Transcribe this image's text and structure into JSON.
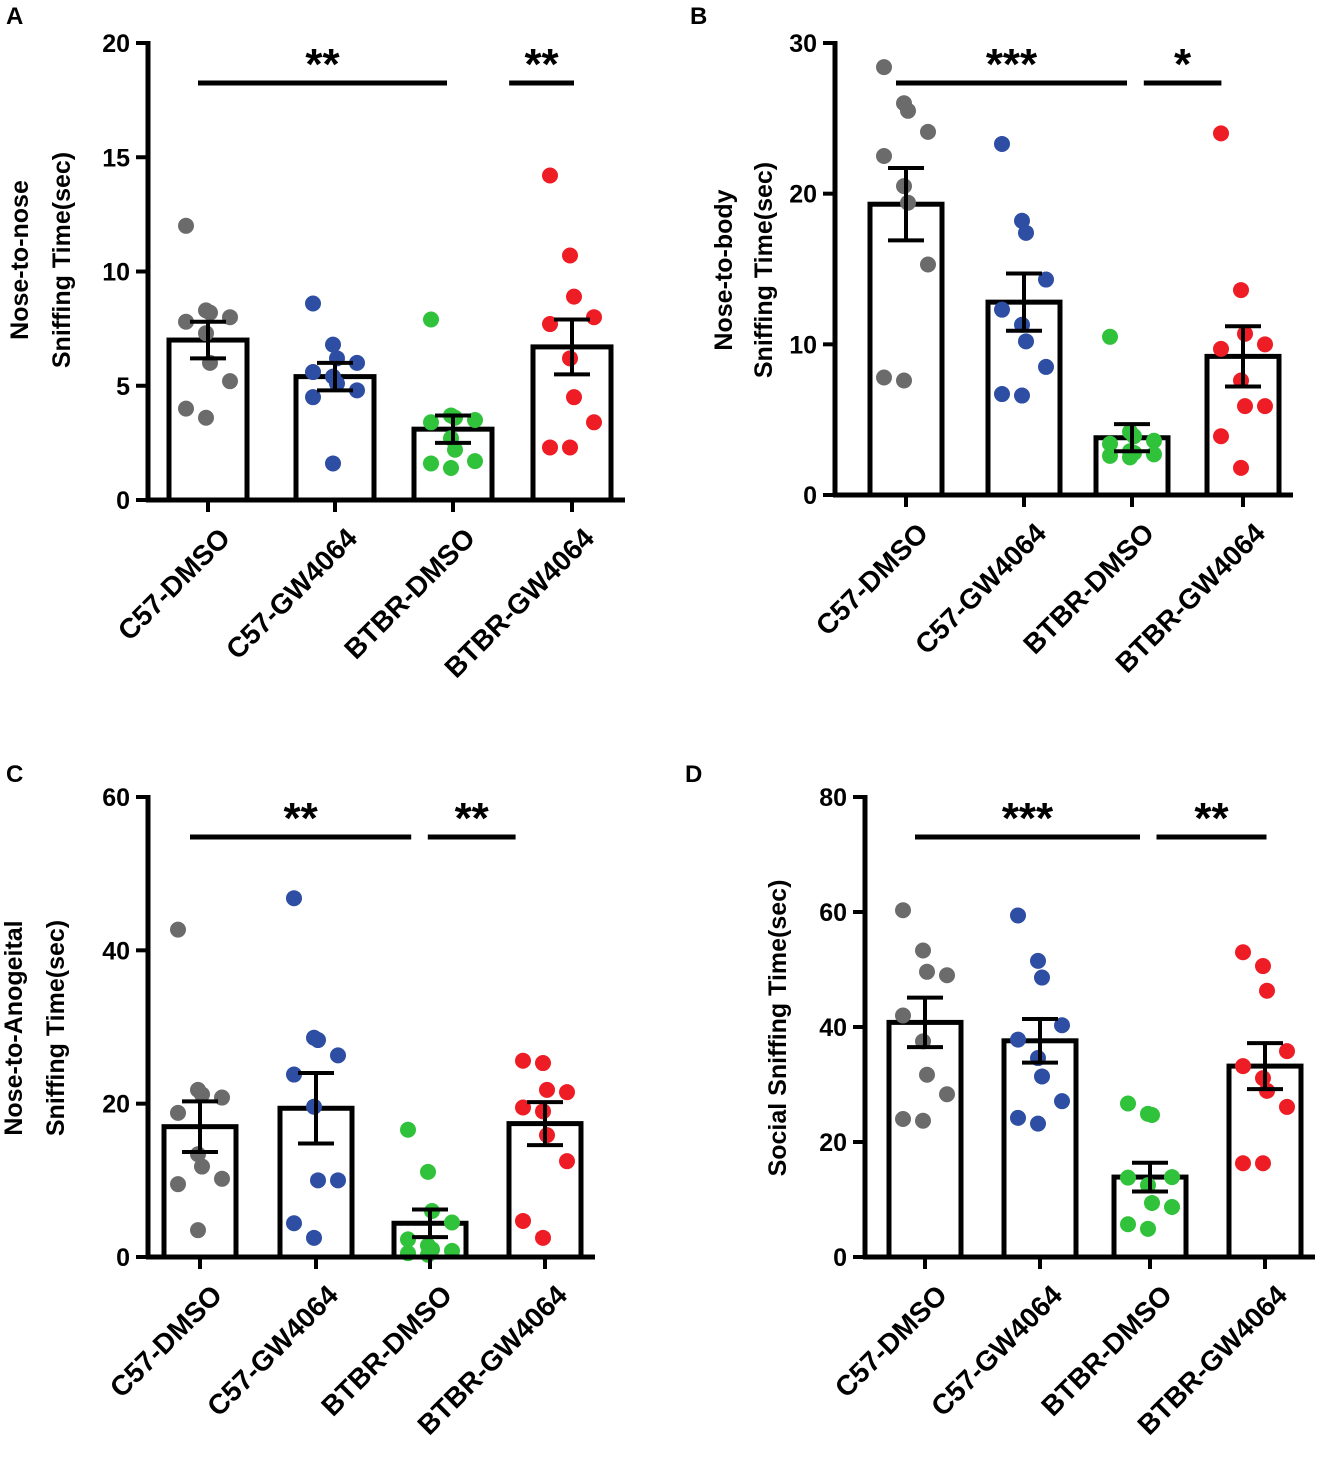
{
  "figure": {
    "colors": {
      "C57-DMSO": "#6b6b6b",
      "C57-GW4064": "#2e4ea3",
      "BTBR-DMSO": "#2fc23a",
      "BTBR-GW4064": "#ee1c24",
      "axis": "#000000",
      "bar_fill": "#ffffff"
    }
  },
  "chart_data": [
    {
      "panel": "A",
      "type": "bar",
      "categories": [
        "C57-DMSO",
        "C57-GW4064",
        "BTBR-DMSO",
        "BTBR-GW4064"
      ],
      "ylabel": "Nose-to-nose Sniffing Time(sec)",
      "ylabel_lines": [
        "Nose-to-nose",
        "Sniffing Time(sec)"
      ],
      "ylim": [
        0,
        20
      ],
      "yticks": [
        0,
        5,
        10,
        15,
        20
      ],
      "means": [
        7.0,
        5.4,
        3.1,
        6.7
      ],
      "sem": [
        0.8,
        0.6,
        0.6,
        1.2
      ],
      "points": [
        [
          12.0,
          8.3,
          8.2,
          8.0,
          7.8,
          7.3,
          6.0,
          5.2,
          4.0,
          3.6
        ],
        [
          8.6,
          6.8,
          6.2,
          6.0,
          5.6,
          5.4,
          5.1,
          4.8,
          4.5,
          1.6
        ],
        [
          7.9,
          3.7,
          3.6,
          3.5,
          3.4,
          2.7,
          2.2,
          1.7,
          1.6,
          1.4
        ],
        [
          14.2,
          10.7,
          8.9,
          8.0,
          7.7,
          6.2,
          4.5,
          3.4,
          2.3,
          2.3
        ]
      ],
      "significance": [
        {
          "from": 0,
          "to": 2,
          "label": "**"
        },
        {
          "from": 2.45,
          "to": 3.0,
          "label": "**"
        }
      ]
    },
    {
      "panel": "B",
      "type": "bar",
      "categories": [
        "C57-DMSO",
        "C57-GW4064",
        "BTBR-DMSO",
        "BTBR-GW4064"
      ],
      "ylabel": "Nose-to-body Sniffing Time(sec)",
      "ylabel_lines": [
        "Nose-to-body",
        "Sniffing Time(sec)"
      ],
      "ylim": [
        0,
        30
      ],
      "yticks": [
        0,
        10,
        20,
        30
      ],
      "means": [
        19.3,
        12.8,
        3.8,
        9.2
      ],
      "sem": [
        2.4,
        1.9,
        0.9,
        2.0
      ],
      "points": [
        [
          28.4,
          26.0,
          25.5,
          24.1,
          22.5,
          20.5,
          19.4,
          15.3,
          7.8,
          7.6
        ],
        [
          23.3,
          18.2,
          17.4,
          14.3,
          12.3,
          11.3,
          10.2,
          8.5,
          6.7,
          6.6
        ],
        [
          10.5,
          4.2,
          3.9,
          3.6,
          3.4,
          2.9,
          2.8,
          2.7,
          2.6,
          2.5
        ],
        [
          24.0,
          13.6,
          10.7,
          10.0,
          9.7,
          7.6,
          5.9,
          5.9,
          3.9,
          1.8
        ]
      ],
      "significance": [
        {
          "from": 0,
          "to": 2,
          "label": "***"
        },
        {
          "from": 2.1,
          "to": 2.8,
          "label": "*"
        }
      ]
    },
    {
      "panel": "C",
      "type": "bar",
      "categories": [
        "C57-DMSO",
        "C57-GW4064",
        "BTBR-DMSO",
        "BTBR-GW4064"
      ],
      "ylabel": "Nose-to-Anogeital Sniffing Time(sec)",
      "ylabel_lines": [
        "Nose-to-Anogeital",
        "Sniffing Time(sec)"
      ],
      "ylim": [
        0,
        60
      ],
      "yticks": [
        0,
        20,
        40,
        60
      ],
      "means": [
        17.0,
        19.4,
        4.4,
        17.4
      ],
      "sem": [
        3.3,
        4.6,
        1.8,
        2.8
      ],
      "points": [
        [
          42.7,
          21.8,
          21.2,
          20.8,
          18.8,
          13.4,
          11.8,
          10.2,
          9.5,
          3.5
        ],
        [
          46.8,
          28.6,
          28.3,
          26.3,
          23.8,
          19.6,
          10.0,
          10.0,
          4.4,
          2.5
        ],
        [
          16.6,
          11.1,
          6.0,
          4.5,
          2.3,
          1.5,
          1.0,
          0.8,
          0.5,
          0.3
        ],
        [
          25.6,
          25.3,
          21.8,
          21.5,
          19.5,
          19.0,
          15.9,
          12.5,
          4.7,
          2.5
        ]
      ],
      "significance": [
        {
          "from": 0,
          "to": 1.95,
          "label": "**"
        },
        {
          "from": 2.05,
          "to": 2.85,
          "label": "**"
        }
      ]
    },
    {
      "panel": "D",
      "type": "bar",
      "categories": [
        "C57-DMSO",
        "C57-GW4064",
        "BTBR-DMSO",
        "BTBR-GW4064"
      ],
      "ylabel": "Social Sniffing Time(sec)",
      "ylabel_lines": [
        "Social Sniffing Time(sec)"
      ],
      "ylim": [
        0,
        80
      ],
      "yticks": [
        0,
        20,
        40,
        60,
        80
      ],
      "means": [
        40.8,
        37.6,
        13.9,
        33.2
      ],
      "sem": [
        4.3,
        3.8,
        2.5,
        4.0
      ],
      "points": [
        [
          60.3,
          53.3,
          49.6,
          49.0,
          42.0,
          37.5,
          31.7,
          28.3,
          24.0,
          23.7
        ],
        [
          59.4,
          51.5,
          48.6,
          40.3,
          37.8,
          34.6,
          31.4,
          27.1,
          24.2,
          23.2
        ],
        [
          26.7,
          24.9,
          24.7,
          13.9,
          13.8,
          12.5,
          9.4,
          8.7,
          5.7,
          4.9
        ],
        [
          53.0,
          50.6,
          46.3,
          35.8,
          33.2,
          31.1,
          28.9,
          26.1,
          16.3,
          16.3
        ]
      ],
      "significance": [
        {
          "from": 0,
          "to": 2,
          "label": "***"
        },
        {
          "from": 2.1,
          "to": 3.1,
          "label": "**"
        }
      ]
    }
  ]
}
